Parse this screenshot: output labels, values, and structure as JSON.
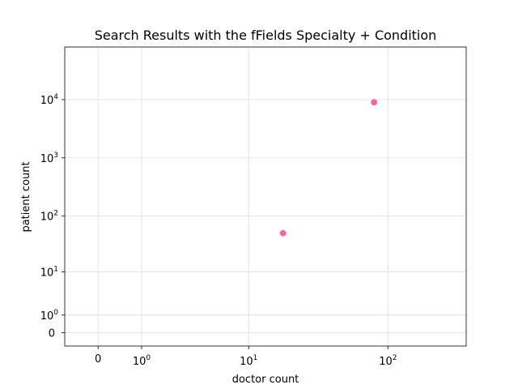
{
  "chart_data": {
    "type": "scatter",
    "title": "Search Results with the fFields Specialty + Condition",
    "xlabel": "doctor count",
    "ylabel": "patient count",
    "xscale": "symlog",
    "yscale": "symlog",
    "xlim": [
      -0.7,
      350
    ],
    "ylim": [
      -0.7,
      80000
    ],
    "x_ticks": [
      {
        "value": 0,
        "base": "0",
        "exp": ""
      },
      {
        "value": 1,
        "base": "10",
        "exp": "0"
      },
      {
        "value": 10,
        "base": "10",
        "exp": "1"
      },
      {
        "value": 100,
        "base": "10",
        "exp": "2"
      }
    ],
    "y_ticks": [
      {
        "value": 0,
        "base": "0",
        "exp": ""
      },
      {
        "value": 1,
        "base": "10",
        "exp": "0"
      },
      {
        "value": 10,
        "base": "10",
        "exp": "1"
      },
      {
        "value": 100,
        "base": "10",
        "exp": "2"
      },
      {
        "value": 1000,
        "base": "10",
        "exp": "3"
      },
      {
        "value": 10000,
        "base": "10",
        "exp": "4"
      }
    ],
    "grid": true,
    "point_color": "#f06ba0",
    "points": [
      {
        "x": 18,
        "y": 50
      },
      {
        "x": 80,
        "y": 9000
      }
    ]
  }
}
